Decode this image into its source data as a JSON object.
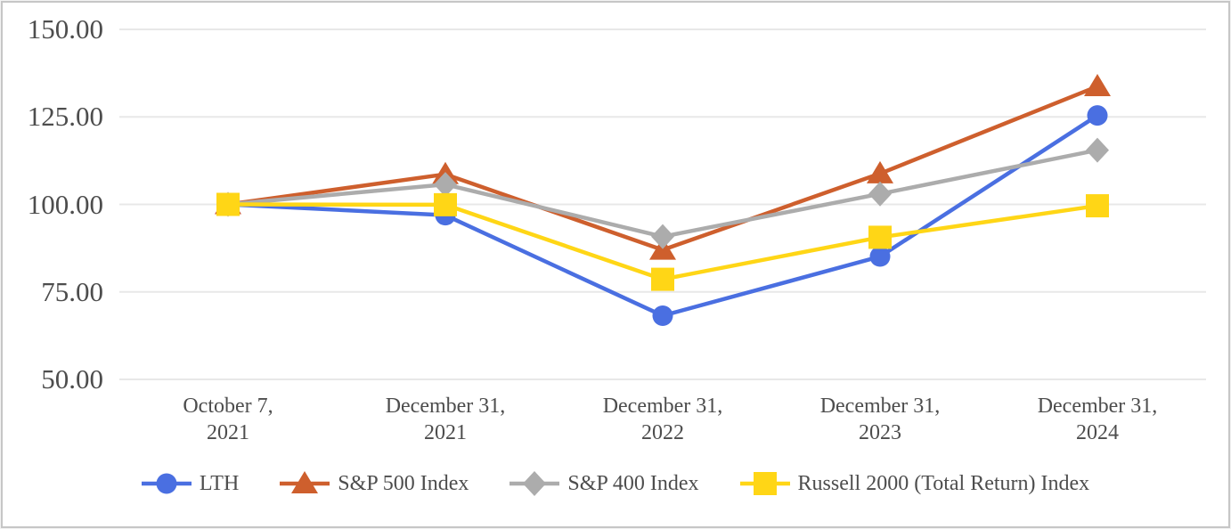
{
  "page": {
    "background": "#ffffff",
    "border_color": "#c6c6c6"
  },
  "chart_data": {
    "type": "line",
    "title": "",
    "xlabel": "",
    "ylabel": "",
    "grid": "horizontal",
    "gridline_color": "#e8e8e8",
    "text_color": "#4d4d4d",
    "legend_position": "bottom",
    "y_axis": {
      "min": 50,
      "max": 150,
      "tick_values": [
        150,
        125,
        100,
        75,
        50
      ],
      "tick_labels": [
        "150.00",
        "125.00",
        "100.00",
        "75.00",
        "50.00"
      ]
    },
    "categories": [
      {
        "line1": "October 7,",
        "line2": "2021"
      },
      {
        "line1": "December 31,",
        "line2": "2021"
      },
      {
        "line1": "December 31,",
        "line2": "2022"
      },
      {
        "line1": "December 31,",
        "line2": "2023"
      },
      {
        "line1": "December 31,",
        "line2": "2024"
      }
    ],
    "series": [
      {
        "name": "LTH",
        "marker": "circle",
        "color": "#4A6FE1",
        "values": [
          100.0,
          96.9,
          68.2,
          85.1,
          125.4
        ]
      },
      {
        "name": "S&P 500 Index",
        "marker": "triangle",
        "color": "#CE5F2D",
        "values": [
          100.0,
          108.6,
          87.0,
          108.8,
          133.7
        ]
      },
      {
        "name": "S&P 400 Index",
        "marker": "diamond",
        "color": "#ACACAC",
        "values": [
          100.0,
          105.7,
          90.8,
          103.0,
          115.5
        ]
      },
      {
        "name": "Russell 2000 (Total Return) Index",
        "marker": "square",
        "color": "#FFD616",
        "values": [
          100.0,
          99.9,
          78.6,
          90.6,
          99.6
        ]
      }
    ]
  }
}
